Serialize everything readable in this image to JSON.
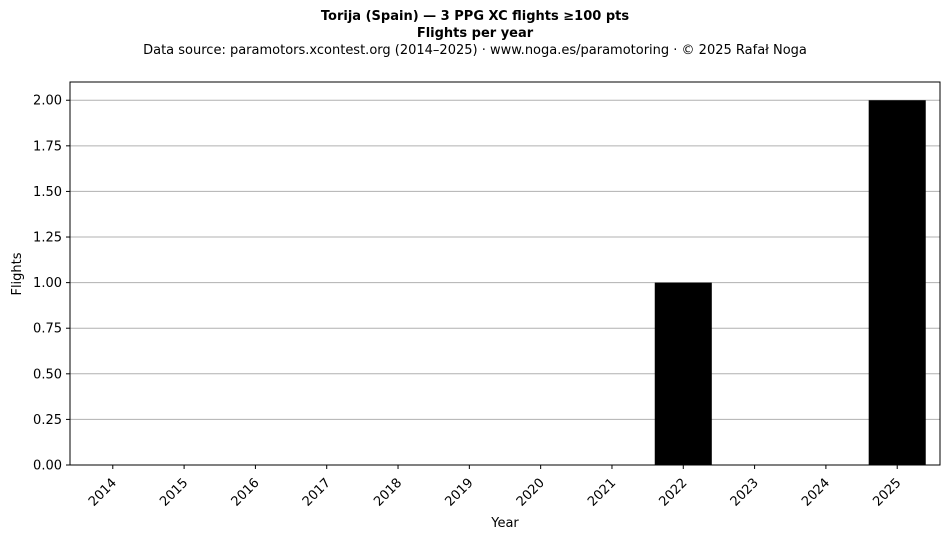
{
  "title": "Torija (Spain)  —  3 PPG XC flights ≥100 pts",
  "subtitle": "Flights per year",
  "source_line": "Data source: paramotors.xcontest.org (2014–2025)  ·  www.noga.es/paramotoring  ·  © 2025 Rafał Noga",
  "chart_data": {
    "type": "bar",
    "categories": [
      "2014",
      "2015",
      "2016",
      "2017",
      "2018",
      "2019",
      "2020",
      "2021",
      "2022",
      "2023",
      "2024",
      "2025"
    ],
    "values": [
      0,
      0,
      0,
      0,
      0,
      0,
      0,
      0,
      1,
      0,
      0,
      2
    ],
    "xlabel": "Year",
    "ylabel": "Flights",
    "ylim": [
      0,
      2.1
    ],
    "yticks": [
      "0.00",
      "0.25",
      "0.50",
      "0.75",
      "1.00",
      "1.25",
      "1.50",
      "1.75",
      "2.00"
    ],
    "grid": "y-axis on",
    "bar_color": "#000000",
    "grid_color": "#b0b0b0"
  }
}
